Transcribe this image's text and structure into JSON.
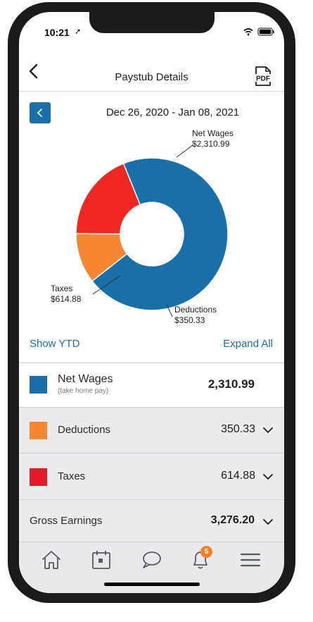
{
  "status_bar": {
    "time": "10:21",
    "location_glyph": "➚"
  },
  "header": {
    "title": "Paystub Details",
    "pdf_label": "PDF"
  },
  "pay_period": {
    "range": "Dec 26, 2020 - Jan 08, 2021"
  },
  "chart_data": {
    "type": "pie",
    "donut": true,
    "labels": [
      "Net Wages",
      "Deductions",
      "Taxes"
    ],
    "values": [
      2310.99,
      350.33,
      614.88
    ],
    "value_labels": [
      "$2,310.99",
      "$350.33",
      "$614.88"
    ],
    "colors": [
      "#1a6fa8",
      "#f58634",
      "#ee2722"
    ]
  },
  "links": {
    "show_ytd": "Show YTD",
    "expand_all": "Expand All"
  },
  "summary": {
    "net_wages": {
      "label": "Net Wages",
      "sub": "(take home pay)",
      "value": "2,310.99",
      "color": "#1a6fa8"
    },
    "deductions": {
      "label": "Deductions",
      "value": "350.33",
      "color": "#f58634"
    },
    "taxes": {
      "label": "Taxes",
      "value": "614.88",
      "color": "#e11b2b"
    },
    "gross": {
      "label": "Gross Earnings",
      "value": "3,276.20"
    }
  },
  "tab_bar": {
    "icons": [
      "home-icon",
      "calendar-icon",
      "chat-icon",
      "bell-icon",
      "menu-icon"
    ],
    "notification_count": "5"
  }
}
